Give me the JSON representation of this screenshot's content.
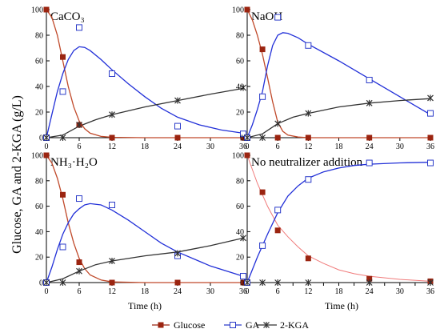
{
  "chart_data": {
    "type": "line",
    "ylabel": "Glucose, GA and 2-KGA (g/L)",
    "xlabel": "Time (h)",
    "legend": {
      "placement": "bottom",
      "entries": [
        {
          "name": "Glucose",
          "color": "#9b2410",
          "marker": "filled-square"
        },
        {
          "name": "GA",
          "color": "#2c3cc9",
          "marker": "open-square"
        },
        {
          "name": "2-KGA",
          "color": "#333333",
          "marker": "asterisk"
        }
      ]
    },
    "panels": [
      {
        "title": "CaCO₃",
        "xticks": [
          "0",
          "6",
          "12",
          "18",
          "24",
          "30",
          "36"
        ],
        "xlim": [
          0,
          36
        ],
        "ylim": [
          0,
          100
        ],
        "yticks": [
          "0",
          "20",
          "40",
          "60",
          "80",
          "100"
        ],
        "series": [
          {
            "name": "Glucose",
            "x": [
              0,
              3,
              6,
              12,
              24,
              36
            ],
            "y": [
              100,
              63,
              10,
              0,
              0,
              0
            ],
            "fit": [
              [
                0,
                100
              ],
              [
                1,
                94
              ],
              [
                2,
                80
              ],
              [
                3,
                60
              ],
              [
                4,
                40
              ],
              [
                5,
                24
              ],
              [
                6,
                13
              ],
              [
                7,
                7
              ],
              [
                8,
                3.5
              ],
              [
                10,
                1
              ],
              [
                12,
                0.3
              ],
              [
                18,
                0
              ],
              [
                36,
                0
              ]
            ]
          },
          {
            "name": "GA",
            "x": [
              0,
              3,
              6,
              12,
              24,
              36
            ],
            "y": [
              0,
              36,
              86,
              50,
              9,
              3
            ],
            "fit": [
              [
                0,
                0
              ],
              [
                1,
                18
              ],
              [
                2,
                36
              ],
              [
                3,
                50
              ],
              [
                4,
                61
              ],
              [
                5,
                68
              ],
              [
                6,
                71
              ],
              [
                7,
                70.5
              ],
              [
                8,
                68
              ],
              [
                10,
                61
              ],
              [
                12,
                53
              ],
              [
                15,
                42
              ],
              [
                18,
                32
              ],
              [
                21,
                23
              ],
              [
                24,
                16
              ],
              [
                28,
                10
              ],
              [
                32,
                6
              ],
              [
                36,
                3.5
              ]
            ]
          },
          {
            "name": "2-KGA",
            "x": [
              0,
              3,
              6,
              12,
              24,
              36
            ],
            "y": [
              0,
              0,
              10,
              18,
              29,
              39
            ],
            "fit": [
              [
                0,
                0
              ],
              [
                3,
                2
              ],
              [
                6,
                9
              ],
              [
                9,
                14
              ],
              [
                12,
                18
              ],
              [
                18,
                24
              ],
              [
                24,
                29
              ],
              [
                30,
                34
              ],
              [
                36,
                38.5
              ]
            ]
          }
        ]
      },
      {
        "title": "NaOH",
        "xticks": [
          "0",
          "6",
          "12",
          "18",
          "24",
          "30",
          "36"
        ],
        "xlim": [
          0,
          36
        ],
        "ylim": [
          0,
          100
        ],
        "yticks": [
          "0",
          "20",
          "40",
          "60",
          "80",
          "100"
        ],
        "series": [
          {
            "name": "Glucose",
            "x": [
              0,
              3,
              6,
              12,
              24,
              36
            ],
            "y": [
              100,
              69,
              0,
              0,
              0,
              0
            ],
            "fit": [
              [
                0,
                100
              ],
              [
                1,
                92
              ],
              [
                2,
                80
              ],
              [
                3,
                65
              ],
              [
                4,
                47
              ],
              [
                5,
                28
              ],
              [
                6,
                12
              ],
              [
                7,
                5
              ],
              [
                8,
                2
              ],
              [
                10,
                0.5
              ],
              [
                12,
                0
              ],
              [
                36,
                0
              ]
            ]
          },
          {
            "name": "GA",
            "x": [
              0,
              3,
              6,
              12,
              24,
              36
            ],
            "y": [
              0,
              32,
              94,
              72,
              45,
              19
            ],
            "fit": [
              [
                0,
                0
              ],
              [
                1,
                10
              ],
              [
                2,
                22
              ],
              [
                3,
                36
              ],
              [
                4,
                56
              ],
              [
                5,
                72
              ],
              [
                6,
                80
              ],
              [
                7,
                82
              ],
              [
                8,
                81.5
              ],
              [
                10,
                78
              ],
              [
                12,
                73
              ],
              [
                18,
                60
              ],
              [
                24,
                46
              ],
              [
                30,
                32
              ],
              [
                36,
                18
              ]
            ]
          },
          {
            "name": "2-KGA",
            "x": [
              0,
              3,
              6,
              12,
              24,
              36
            ],
            "y": [
              0,
              0,
              11,
              19,
              27,
              31
            ],
            "fit": [
              [
                0,
                0
              ],
              [
                3,
                3
              ],
              [
                6,
                11
              ],
              [
                9,
                16
              ],
              [
                12,
                19
              ],
              [
                18,
                24
              ],
              [
                24,
                27
              ],
              [
                30,
                29
              ],
              [
                36,
                30.5
              ]
            ]
          }
        ]
      },
      {
        "title": "NH₃·H₂O",
        "xticks": [
          "0",
          "6",
          "12",
          "18",
          "24",
          "30",
          "36"
        ],
        "xlim": [
          0,
          36
        ],
        "ylim": [
          0,
          100
        ],
        "yticks": [
          "0",
          "20",
          "40",
          "60",
          "80",
          "100"
        ],
        "series": [
          {
            "name": "Glucose",
            "x": [
              0,
              3,
              6,
              12,
              24,
              36
            ],
            "y": [
              100,
              69,
              16,
              0,
              0,
              0
            ],
            "fit": [
              [
                0,
                100
              ],
              [
                1,
                94
              ],
              [
                2,
                82
              ],
              [
                3,
                66
              ],
              [
                4,
                47
              ],
              [
                5,
                31
              ],
              [
                6,
                19
              ],
              [
                7,
                11
              ],
              [
                8,
                6
              ],
              [
                10,
                2
              ],
              [
                12,
                0.5
              ],
              [
                18,
                0
              ],
              [
                36,
                0
              ]
            ]
          },
          {
            "name": "GA",
            "x": [
              0,
              3,
              6,
              12,
              24,
              36
            ],
            "y": [
              0,
              28,
              66,
              61,
              21,
              5
            ],
            "fit": [
              [
                0,
                0
              ],
              [
                1,
                12
              ],
              [
                2,
                26
              ],
              [
                3,
                38
              ],
              [
                4,
                47
              ],
              [
                5,
                54
              ],
              [
                6,
                58
              ],
              [
                7,
                61
              ],
              [
                8,
                62
              ],
              [
                10,
                61
              ],
              [
                12,
                57
              ],
              [
                15,
                49
              ],
              [
                18,
                40
              ],
              [
                21,
                31
              ],
              [
                24,
                24
              ],
              [
                30,
                13
              ],
              [
                36,
                5
              ]
            ]
          },
          {
            "name": "2-KGA",
            "x": [
              0,
              3,
              6,
              12,
              24,
              36
            ],
            "y": [
              0,
              0,
              9,
              17,
              23,
              35
            ],
            "fit": [
              [
                0,
                0
              ],
              [
                3,
                3
              ],
              [
                6,
                9
              ],
              [
                9,
                14
              ],
              [
                12,
                17
              ],
              [
                18,
                21
              ],
              [
                24,
                24
              ],
              [
                30,
                29
              ],
              [
                36,
                35
              ]
            ]
          }
        ]
      },
      {
        "title": "No neutralizer addition",
        "xticks": [
          "0",
          "3",
          "6",
          "9",
          "12",
          "15",
          "18",
          "21",
          "24",
          "27",
          "30",
          "33",
          "36"
        ],
        "xtick_labels_visible": [
          "0",
          "",
          "6",
          "",
          "12",
          "",
          "18",
          "",
          "24",
          "",
          "30",
          "",
          "36"
        ],
        "xlim": [
          0,
          36
        ],
        "ylim": [
          0,
          100
        ],
        "yticks": [
          "0",
          "20",
          "40",
          "60",
          "80",
          "100"
        ],
        "series": [
          {
            "name": "Glucose",
            "x": [
              0,
              3,
              6,
              12,
              24,
              36
            ],
            "y": [
              100,
              71,
              41,
              19,
              3,
              1
            ],
            "fit": [
              [
                0,
                100
              ],
              [
                2,
                78
              ],
              [
                4,
                60
              ],
              [
                6,
                45
              ],
              [
                8,
                36
              ],
              [
                10,
                28
              ],
              [
                12,
                21
              ],
              [
                15,
                15
              ],
              [
                18,
                10
              ],
              [
                21,
                7
              ],
              [
                24,
                5
              ],
              [
                30,
                2.5
              ],
              [
                36,
                1
              ]
            ]
          },
          {
            "name": "GA",
            "x": [
              0,
              3,
              6,
              12,
              24,
              36
            ],
            "y": [
              0,
              29,
              57,
              81,
              94,
              94
            ],
            "fit": [
              [
                0,
                0
              ],
              [
                2,
                20
              ],
              [
                4,
                38
              ],
              [
                6,
                55
              ],
              [
                8,
                68
              ],
              [
                10,
                76
              ],
              [
                12,
                82
              ],
              [
                15,
                87
              ],
              [
                18,
                90
              ],
              [
                21,
                92
              ],
              [
                24,
                93
              ],
              [
                30,
                94
              ],
              [
                36,
                94.5
              ]
            ]
          },
          {
            "name": "2-KGA",
            "x": [
              0,
              3,
              6,
              12,
              24,
              36
            ],
            "y": [
              0,
              0,
              0,
              0,
              0,
              0
            ],
            "fit": [
              [
                0,
                0
              ],
              [
                36,
                0
              ]
            ]
          }
        ]
      }
    ]
  }
}
